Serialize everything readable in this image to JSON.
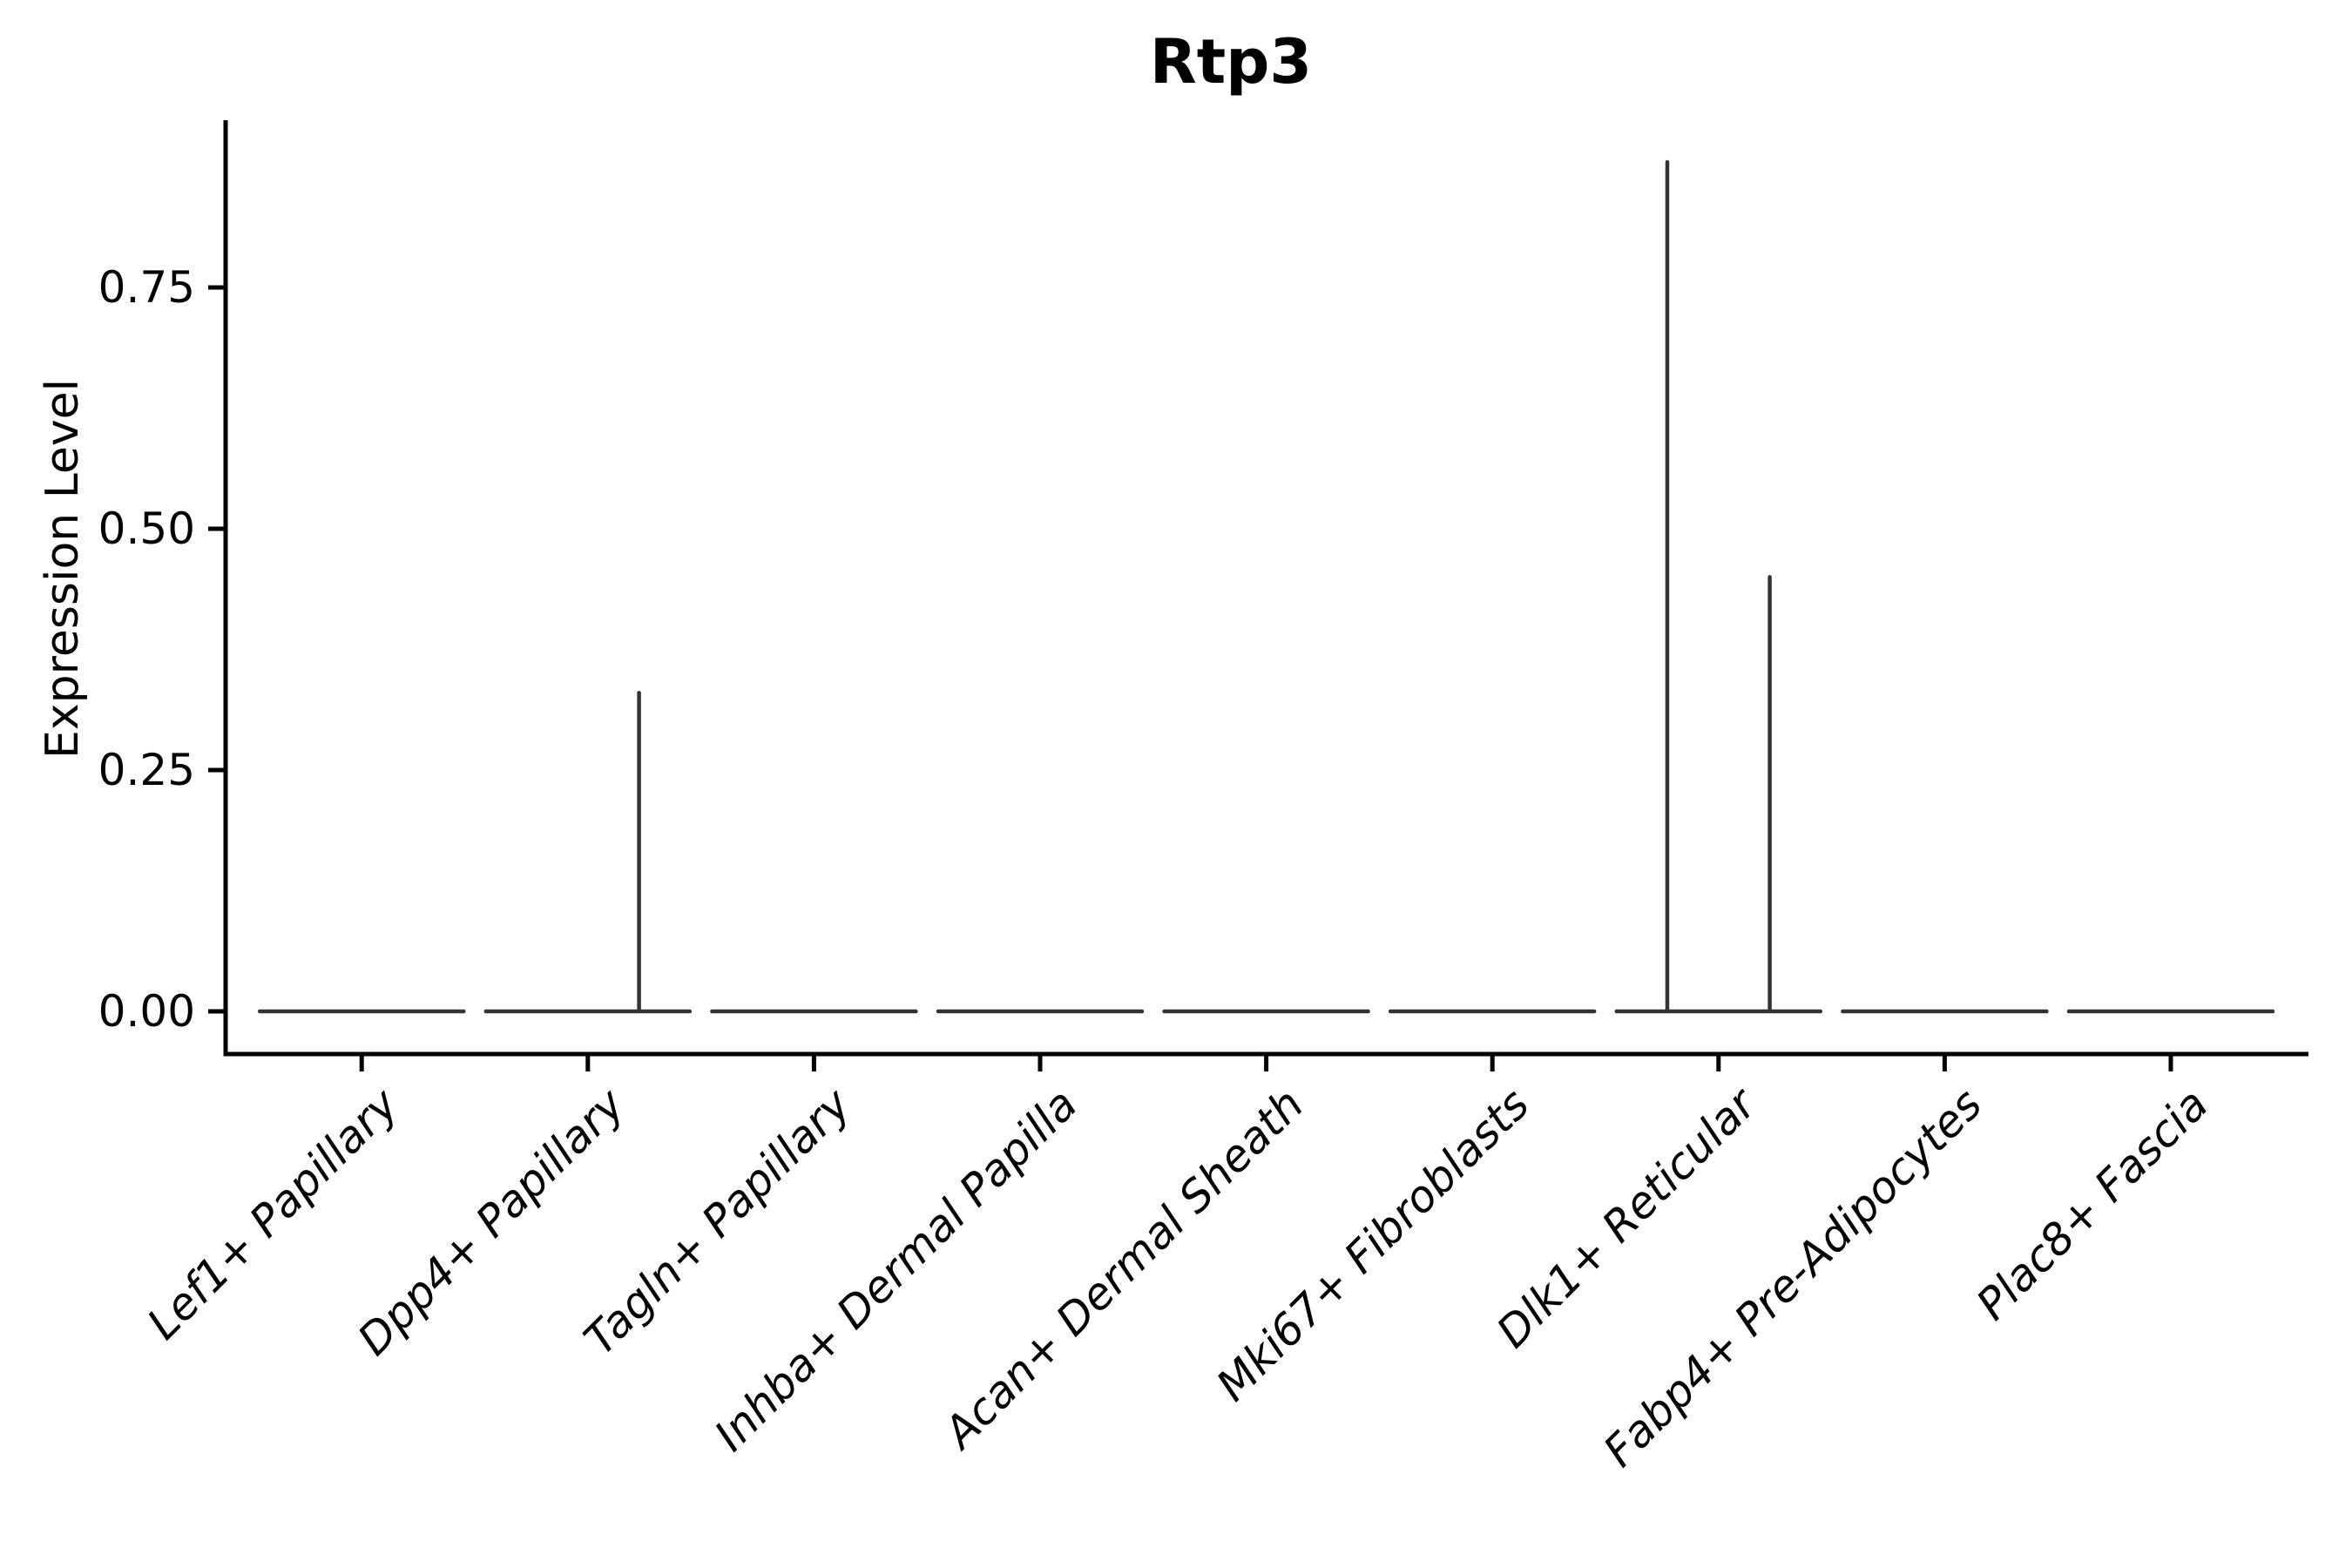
{
  "figure": {
    "title": "Rtp3"
  },
  "y_axis": {
    "label": "Expression Level"
  },
  "chart_data": {
    "type": "violin",
    "title": "Rtp3",
    "xlabel": "",
    "ylabel": "Expression Level",
    "categories": [
      "Lef1+ Papillary",
      "Dpp4+ Papillary",
      "Tagln+ Papillary",
      "Inhba+ Dermal Papilla",
      "Acan+ Dermal Sheath",
      "Mki67+ Fibroblasts",
      "Dlk1+ Reticular",
      "Fabp4+ Pre-Adipocytes",
      "Plac8+ Fascia"
    ],
    "violins": [
      {
        "category": "Lef1+ Papillary",
        "baseline": 0,
        "spikes": []
      },
      {
        "category": "Dpp4+ Papillary",
        "baseline": 0,
        "spikes": [
          {
            "position": "right",
            "max": 0.33
          }
        ]
      },
      {
        "category": "Tagln+ Papillary",
        "baseline": 0,
        "spikes": []
      },
      {
        "category": "Inhba+ Dermal Papilla",
        "baseline": 0,
        "spikes": []
      },
      {
        "category": "Acan+ Dermal Sheath",
        "baseline": 0,
        "spikes": []
      },
      {
        "category": "Mki67+ Fibroblasts",
        "baseline": 0,
        "spikes": []
      },
      {
        "category": "Dlk1+ Reticular",
        "baseline": 0,
        "spikes": [
          {
            "position": "left",
            "max": 0.88
          },
          {
            "position": "right",
            "max": 0.45
          }
        ]
      },
      {
        "category": "Fabp4+ Pre-Adipocytes",
        "baseline": 0,
        "spikes": []
      },
      {
        "category": "Plac8+ Fascia",
        "baseline": 0,
        "spikes": []
      }
    ],
    "yticks": [
      0.0,
      0.25,
      0.5,
      0.75
    ],
    "ytick_labels": [
      "0.00",
      "0.25",
      "0.50",
      "0.75"
    ],
    "ylim": [
      -0.045,
      0.92
    ],
    "grid": false,
    "legend": null,
    "colors": {
      "violin_stroke": "#333333",
      "axis": "#000000",
      "text": "#000000",
      "background": "#ffffff"
    }
  }
}
